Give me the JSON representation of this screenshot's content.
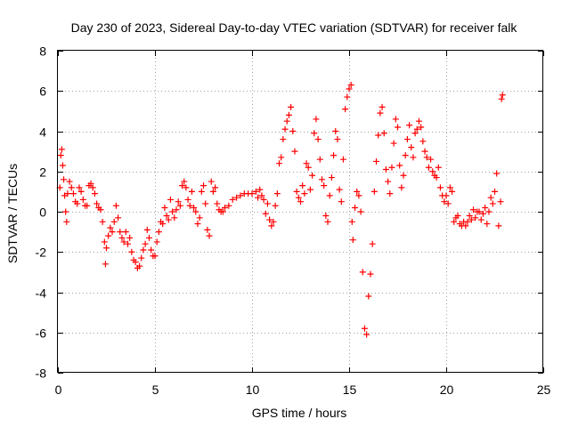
{
  "chart_data": {
    "type": "scatter",
    "title": "Day 230 of 2023, Sidereal Day-to-day VTEC variation (SDTVAR) for receiver falk",
    "xlabel": "GPS time / hours",
    "ylabel": "SDTVAR / TECUs",
    "xlim": [
      0,
      25
    ],
    "ylim": [
      -8,
      8
    ],
    "x_ticks": [
      0,
      5,
      10,
      15,
      20,
      25
    ],
    "y_ticks": [
      -8,
      -6,
      -4,
      -2,
      0,
      2,
      4,
      6,
      8
    ],
    "x_tick_labels": [
      "0",
      "5",
      "10",
      "15",
      "20",
      "25"
    ],
    "y_tick_labels": [
      "-8",
      "-6",
      "-4",
      "-2",
      "0",
      "2",
      "4",
      "6",
      "8"
    ],
    "grid": true,
    "marker": "plus",
    "color": "#ff0000",
    "series": [
      {
        "name": "SDTVAR",
        "points": [
          [
            0.1,
            1.2
          ],
          [
            0.15,
            2.8
          ],
          [
            0.2,
            3.1
          ],
          [
            0.25,
            2.3
          ],
          [
            0.3,
            1.6
          ],
          [
            0.35,
            0.8
          ],
          [
            0.4,
            0.0
          ],
          [
            0.45,
            -0.5
          ],
          [
            0.5,
            0.9
          ],
          [
            0.6,
            1.5
          ],
          [
            0.7,
            1.2
          ],
          [
            0.8,
            0.9
          ],
          [
            0.9,
            0.5
          ],
          [
            1.0,
            0.4
          ],
          [
            1.1,
            1.2
          ],
          [
            1.2,
            1.0
          ],
          [
            1.3,
            0.6
          ],
          [
            1.4,
            0.3
          ],
          [
            1.5,
            0.3
          ],
          [
            1.6,
            1.3
          ],
          [
            1.7,
            1.4
          ],
          [
            1.8,
            1.2
          ],
          [
            1.9,
            0.9
          ],
          [
            2.0,
            0.4
          ],
          [
            2.1,
            0.2
          ],
          [
            2.2,
            0.1
          ],
          [
            2.3,
            -0.5
          ],
          [
            2.4,
            -1.5
          ],
          [
            2.45,
            -2.6
          ],
          [
            2.5,
            -1.8
          ],
          [
            2.6,
            -1.2
          ],
          [
            2.7,
            -0.8
          ],
          [
            2.8,
            -1.0
          ],
          [
            2.9,
            -0.5
          ],
          [
            3.0,
            0.3
          ],
          [
            3.1,
            -0.3
          ],
          [
            3.2,
            -1.0
          ],
          [
            3.3,
            -1.3
          ],
          [
            3.4,
            -1.5
          ],
          [
            3.5,
            -1.0
          ],
          [
            3.6,
            -1.6
          ],
          [
            3.7,
            -1.3
          ],
          [
            3.8,
            -2.0
          ],
          [
            3.9,
            -2.4
          ],
          [
            4.0,
            -2.5
          ],
          [
            4.1,
            -2.8
          ],
          [
            4.2,
            -2.7
          ],
          [
            4.3,
            -2.3
          ],
          [
            4.4,
            -1.9
          ],
          [
            4.5,
            -1.6
          ],
          [
            4.6,
            -0.9
          ],
          [
            4.7,
            -1.3
          ],
          [
            4.8,
            -1.9
          ],
          [
            4.9,
            -2.2
          ],
          [
            5.0,
            -2.2
          ],
          [
            5.1,
            -1.5
          ],
          [
            5.2,
            -1.0
          ],
          [
            5.3,
            -0.5
          ],
          [
            5.4,
            -0.6
          ],
          [
            5.5,
            0.2
          ],
          [
            5.6,
            -0.2
          ],
          [
            5.7,
            -0.4
          ],
          [
            5.8,
            0.6
          ],
          [
            5.9,
            0.0
          ],
          [
            6.0,
            -0.3
          ],
          [
            6.1,
            0.1
          ],
          [
            6.2,
            0.5
          ],
          [
            6.3,
            0.3
          ],
          [
            6.4,
            1.3
          ],
          [
            6.5,
            1.5
          ],
          [
            6.6,
            1.2
          ],
          [
            6.7,
            0.6
          ],
          [
            6.8,
            0.3
          ],
          [
            6.9,
            1.0
          ],
          [
            7.0,
            0.2
          ],
          [
            7.1,
            0.0
          ],
          [
            7.2,
            -0.6
          ],
          [
            7.3,
            -0.3
          ],
          [
            7.4,
            1.0
          ],
          [
            7.5,
            1.3
          ],
          [
            7.6,
            0.4
          ],
          [
            7.7,
            -0.9
          ],
          [
            7.8,
            -1.2
          ],
          [
            7.9,
            1.5
          ],
          [
            8.0,
            1.0
          ],
          [
            8.1,
            1.2
          ],
          [
            8.2,
            0.4
          ],
          [
            8.3,
            0.1
          ],
          [
            8.4,
            0.0
          ],
          [
            8.5,
            0.0
          ],
          [
            8.6,
            0.2
          ],
          [
            8.8,
            0.3
          ],
          [
            9.0,
            0.6
          ],
          [
            9.2,
            0.7
          ],
          [
            9.4,
            0.8
          ],
          [
            9.6,
            0.9
          ],
          [
            9.8,
            0.9
          ],
          [
            10.0,
            0.9
          ],
          [
            10.2,
            1.0
          ],
          [
            10.3,
            0.7
          ],
          [
            10.4,
            1.1
          ],
          [
            10.5,
            0.8
          ],
          [
            10.6,
            0.6
          ],
          [
            10.7,
            -0.1
          ],
          [
            10.8,
            0.4
          ],
          [
            10.9,
            -0.4
          ],
          [
            11.0,
            -0.7
          ],
          [
            11.1,
            -0.5
          ],
          [
            11.2,
            0.3
          ],
          [
            11.3,
            0.9
          ],
          [
            11.4,
            2.4
          ],
          [
            11.5,
            2.7
          ],
          [
            11.6,
            3.6
          ],
          [
            11.7,
            4.1
          ],
          [
            11.8,
            4.5
          ],
          [
            11.9,
            4.8
          ],
          [
            12.0,
            5.2
          ],
          [
            12.1,
            4.0
          ],
          [
            12.2,
            3.0
          ],
          [
            12.3,
            1.0
          ],
          [
            12.4,
            0.7
          ],
          [
            12.5,
            0.5
          ],
          [
            12.6,
            1.3
          ],
          [
            12.7,
            0.9
          ],
          [
            12.8,
            2.4
          ],
          [
            12.9,
            2.2
          ],
          [
            13.0,
            1.1
          ],
          [
            13.1,
            1.8
          ],
          [
            13.2,
            3.9
          ],
          [
            13.3,
            4.6
          ],
          [
            13.4,
            3.6
          ],
          [
            13.5,
            2.6
          ],
          [
            13.6,
            1.6
          ],
          [
            13.7,
            1.3
          ],
          [
            13.8,
            -0.2
          ],
          [
            13.9,
            -0.5
          ],
          [
            14.0,
            0.8
          ],
          [
            14.1,
            1.7
          ],
          [
            14.2,
            2.8
          ],
          [
            14.3,
            4.0
          ],
          [
            14.4,
            3.6
          ],
          [
            14.5,
            1.1
          ],
          [
            14.6,
            0.5
          ],
          [
            14.7,
            2.6
          ],
          [
            14.8,
            5.1
          ],
          [
            14.9,
            5.7
          ],
          [
            15.0,
            6.1
          ],
          [
            15.1,
            6.3
          ],
          [
            15.15,
            -0.5
          ],
          [
            15.2,
            -1.4
          ],
          [
            15.3,
            0.2
          ],
          [
            15.4,
            1.0
          ],
          [
            15.5,
            0.8
          ],
          [
            15.6,
            0.0
          ],
          [
            15.7,
            -3.0
          ],
          [
            15.8,
            -5.8
          ],
          [
            15.9,
            -6.1
          ],
          [
            16.0,
            -4.2
          ],
          [
            16.1,
            -3.1
          ],
          [
            16.2,
            -1.6
          ],
          [
            16.3,
            1.0
          ],
          [
            16.4,
            2.5
          ],
          [
            16.5,
            3.8
          ],
          [
            16.6,
            4.9
          ],
          [
            16.7,
            5.2
          ],
          [
            16.8,
            3.9
          ],
          [
            16.9,
            2.1
          ],
          [
            17.0,
            1.5
          ],
          [
            17.1,
            0.9
          ],
          [
            17.2,
            2.2
          ],
          [
            17.3,
            3.4
          ],
          [
            17.4,
            4.6
          ],
          [
            17.5,
            4.2
          ],
          [
            17.6,
            2.3
          ],
          [
            17.7,
            1.2
          ],
          [
            17.8,
            1.8
          ],
          [
            17.9,
            2.8
          ],
          [
            18.0,
            3.6
          ],
          [
            18.1,
            4.3
          ],
          [
            18.2,
            3.2
          ],
          [
            18.3,
            2.7
          ],
          [
            18.4,
            3.9
          ],
          [
            18.5,
            4.1
          ],
          [
            18.6,
            4.5
          ],
          [
            18.7,
            4.2
          ],
          [
            18.8,
            3.5
          ],
          [
            18.9,
            3.0
          ],
          [
            19.0,
            2.7
          ],
          [
            19.1,
            2.2
          ],
          [
            19.2,
            2.6
          ],
          [
            19.3,
            2.0
          ],
          [
            19.4,
            1.8
          ],
          [
            19.5,
            1.7
          ],
          [
            19.6,
            2.2
          ],
          [
            19.7,
            1.2
          ],
          [
            19.8,
            0.8
          ],
          [
            19.9,
            0.5
          ],
          [
            20.0,
            0.8
          ],
          [
            20.1,
            0.4
          ],
          [
            20.2,
            1.2
          ],
          [
            20.3,
            1.0
          ],
          [
            20.4,
            -0.5
          ],
          [
            20.5,
            -0.3
          ],
          [
            20.6,
            -0.2
          ],
          [
            20.7,
            -0.6
          ],
          [
            20.8,
            -0.7
          ],
          [
            20.9,
            -0.5
          ],
          [
            21.0,
            -0.7
          ],
          [
            21.1,
            -0.5
          ],
          [
            21.2,
            -0.2
          ],
          [
            21.3,
            -0.4
          ],
          [
            21.4,
            0.1
          ],
          [
            21.5,
            -0.3
          ],
          [
            21.6,
            0.0
          ],
          [
            21.7,
            0.0
          ],
          [
            21.8,
            -0.4
          ],
          [
            21.9,
            -0.1
          ],
          [
            22.0,
            0.2
          ],
          [
            22.1,
            -0.6
          ],
          [
            22.2,
            0.0
          ],
          [
            22.3,
            0.7
          ],
          [
            22.4,
            0.4
          ],
          [
            22.5,
            1.0
          ],
          [
            22.6,
            1.9
          ],
          [
            22.7,
            -0.7
          ],
          [
            22.8,
            0.5
          ],
          [
            22.85,
            5.6
          ],
          [
            22.9,
            5.8
          ]
        ]
      }
    ]
  }
}
